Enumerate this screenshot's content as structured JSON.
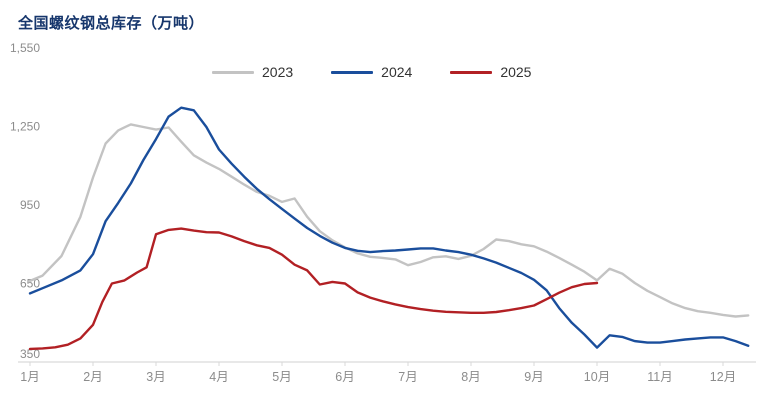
{
  "title": "全国螺纹钢总库存（万吨）",
  "colors": {
    "title": "#16366c",
    "axis_line": "#d9d9d9",
    "tick_label": "#8c8c8c",
    "legend_text": "#333333"
  },
  "chart_data": {
    "type": "line",
    "title": "全国螺纹钢总库存（万吨）",
    "grid": false,
    "legend_position": "top-center",
    "ylim": [
      350,
      1550
    ],
    "yticks": [
      350,
      650,
      950,
      1250,
      1550
    ],
    "ytick_labels": [
      "350",
      "650",
      "950",
      "1,250",
      "1,550"
    ],
    "x_months": [
      1,
      2,
      3,
      4,
      5,
      6,
      7,
      8,
      9,
      10,
      11,
      12
    ],
    "x_tick_labels": [
      "1月",
      "2月",
      "3月",
      "4月",
      "5月",
      "6月",
      "7月",
      "8月",
      "9月",
      "10月",
      "11月",
      "12月"
    ],
    "series": [
      {
        "name": "2023",
        "color": "#c3c3c3",
        "points": [
          [
            1,
            660
          ],
          [
            1.2,
            680
          ],
          [
            1.5,
            755
          ],
          [
            1.8,
            905
          ],
          [
            2,
            1055
          ],
          [
            2.2,
            1185
          ],
          [
            2.4,
            1235
          ],
          [
            2.6,
            1258
          ],
          [
            2.8,
            1248
          ],
          [
            3,
            1238
          ],
          [
            3.2,
            1246
          ],
          [
            3.4,
            1192
          ],
          [
            3.6,
            1140
          ],
          [
            3.8,
            1112
          ],
          [
            4,
            1088
          ],
          [
            4.2,
            1058
          ],
          [
            4.4,
            1028
          ],
          [
            4.6,
            1000
          ],
          [
            4.8,
            985
          ],
          [
            5,
            962
          ],
          [
            5.2,
            975
          ],
          [
            5.4,
            905
          ],
          [
            5.6,
            850
          ],
          [
            5.8,
            815
          ],
          [
            6,
            788
          ],
          [
            6.2,
            765
          ],
          [
            6.4,
            752
          ],
          [
            6.6,
            748
          ],
          [
            6.8,
            742
          ],
          [
            7,
            720
          ],
          [
            7.2,
            732
          ],
          [
            7.4,
            750
          ],
          [
            7.6,
            754
          ],
          [
            7.8,
            744
          ],
          [
            8,
            756
          ],
          [
            8.2,
            782
          ],
          [
            8.4,
            818
          ],
          [
            8.6,
            812
          ],
          [
            8.8,
            800
          ],
          [
            9,
            792
          ],
          [
            9.2,
            772
          ],
          [
            9.4,
            748
          ],
          [
            9.6,
            722
          ],
          [
            9.8,
            695
          ],
          [
            10,
            662
          ],
          [
            10.2,
            706
          ],
          [
            10.4,
            688
          ],
          [
            10.6,
            652
          ],
          [
            10.8,
            622
          ],
          [
            11,
            598
          ],
          [
            11.2,
            574
          ],
          [
            11.4,
            556
          ],
          [
            11.6,
            544
          ],
          [
            11.8,
            538
          ],
          [
            12,
            530
          ],
          [
            12.2,
            524
          ],
          [
            12.4,
            528
          ]
        ]
      },
      {
        "name": "2024",
        "color": "#1a4e9c",
        "points": [
          [
            1,
            612
          ],
          [
            1.2,
            632
          ],
          [
            1.5,
            662
          ],
          [
            1.8,
            700
          ],
          [
            2,
            762
          ],
          [
            2.2,
            888
          ],
          [
            2.4,
            958
          ],
          [
            2.6,
            1032
          ],
          [
            2.8,
            1122
          ],
          [
            3,
            1202
          ],
          [
            3.2,
            1288
          ],
          [
            3.4,
            1322
          ],
          [
            3.6,
            1312
          ],
          [
            3.8,
            1248
          ],
          [
            4,
            1162
          ],
          [
            4.2,
            1108
          ],
          [
            4.4,
            1058
          ],
          [
            4.6,
            1012
          ],
          [
            4.8,
            972
          ],
          [
            5,
            935
          ],
          [
            5.2,
            898
          ],
          [
            5.4,
            862
          ],
          [
            5.6,
            832
          ],
          [
            5.8,
            806
          ],
          [
            6,
            786
          ],
          [
            6.2,
            775
          ],
          [
            6.4,
            770
          ],
          [
            6.6,
            774
          ],
          [
            6.8,
            776
          ],
          [
            7,
            780
          ],
          [
            7.2,
            784
          ],
          [
            7.4,
            784
          ],
          [
            7.6,
            776
          ],
          [
            7.8,
            770
          ],
          [
            8,
            760
          ],
          [
            8.2,
            746
          ],
          [
            8.4,
            730
          ],
          [
            8.6,
            710
          ],
          [
            8.8,
            690
          ],
          [
            9,
            664
          ],
          [
            9.2,
            624
          ],
          [
            9.4,
            556
          ],
          [
            9.6,
            500
          ],
          [
            9.8,
            455
          ],
          [
            10,
            405
          ],
          [
            10.2,
            452
          ],
          [
            10.4,
            446
          ],
          [
            10.6,
            430
          ],
          [
            10.8,
            424
          ],
          [
            11,
            424
          ],
          [
            11.2,
            430
          ],
          [
            11.4,
            436
          ],
          [
            11.6,
            440
          ],
          [
            11.8,
            444
          ],
          [
            12,
            444
          ],
          [
            12.2,
            430
          ],
          [
            12.4,
            412
          ]
        ]
      },
      {
        "name": "2025",
        "color": "#b22024",
        "points": [
          [
            1,
            400
          ],
          [
            1.2,
            402
          ],
          [
            1.4,
            406
          ],
          [
            1.6,
            416
          ],
          [
            1.8,
            440
          ],
          [
            2,
            492
          ],
          [
            2.15,
            580
          ],
          [
            2.3,
            650
          ],
          [
            2.5,
            662
          ],
          [
            2.7,
            692
          ],
          [
            2.85,
            712
          ],
          [
            3,
            838
          ],
          [
            3.2,
            855
          ],
          [
            3.4,
            860
          ],
          [
            3.6,
            852
          ],
          [
            3.8,
            846
          ],
          [
            4,
            845
          ],
          [
            4.2,
            830
          ],
          [
            4.4,
            812
          ],
          [
            4.6,
            796
          ],
          [
            4.8,
            786
          ],
          [
            5,
            760
          ],
          [
            5.2,
            722
          ],
          [
            5.4,
            700
          ],
          [
            5.6,
            646
          ],
          [
            5.8,
            656
          ],
          [
            6,
            650
          ],
          [
            6.2,
            616
          ],
          [
            6.4,
            596
          ],
          [
            6.6,
            582
          ],
          [
            6.8,
            570
          ],
          [
            7,
            560
          ],
          [
            7.2,
            552
          ],
          [
            7.4,
            546
          ],
          [
            7.6,
            542
          ],
          [
            7.8,
            540
          ],
          [
            8,
            538
          ],
          [
            8.2,
            538
          ],
          [
            8.4,
            541
          ],
          [
            8.6,
            548
          ],
          [
            8.8,
            556
          ],
          [
            9,
            566
          ],
          [
            9.2,
            590
          ],
          [
            9.4,
            615
          ],
          [
            9.6,
            636
          ],
          [
            9.8,
            648
          ],
          [
            10,
            652
          ]
        ]
      }
    ]
  }
}
